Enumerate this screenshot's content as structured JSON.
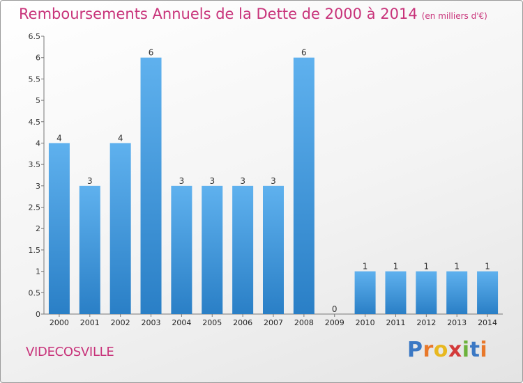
{
  "title": "Remboursements Annuels de la Dette de 2000 à 2014",
  "unit": "(en milliers d'€)",
  "commune": "VIDECOSVILLE",
  "brand": {
    "letters": [
      "P",
      "r",
      "o",
      "x",
      "i",
      "t",
      "i"
    ],
    "colors": [
      "#3b78c4",
      "#e8782a",
      "#e8b820",
      "#d33a3a",
      "#6cb23c",
      "#3b78c4",
      "#e8782a"
    ]
  },
  "colors": {
    "bar_light": "#5fb1ee",
    "bar_dark": "#2a7fc6",
    "title": "#c8337a"
  },
  "chart_data": {
    "type": "bar",
    "title": "Remboursements Annuels de la Dette de 2000 à 2014",
    "categories": [
      "2000",
      "2001",
      "2002",
      "2003",
      "2004",
      "2005",
      "2006",
      "2007",
      "2008",
      "2009",
      "2010",
      "2011",
      "2012",
      "2013",
      "2014"
    ],
    "values": [
      4,
      3,
      4,
      6,
      3,
      3,
      3,
      3,
      6,
      0,
      1,
      1,
      1,
      1,
      1
    ],
    "ylim": [
      0,
      6.5
    ],
    "yticks": [
      "0",
      "0.5",
      "1",
      "1.5",
      "2",
      "2.5",
      "3",
      "3.5",
      "4",
      "4.5",
      "5",
      "5.5",
      "6",
      "6.5"
    ],
    "grid": false,
    "legend": "none"
  }
}
